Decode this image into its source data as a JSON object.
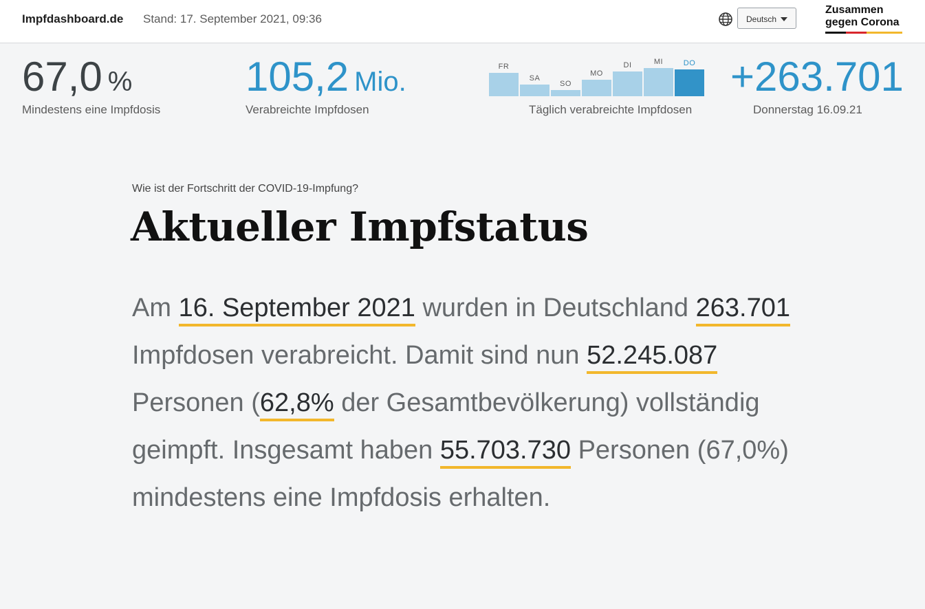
{
  "header": {
    "brand": "Impfdashboard.de",
    "stand": "Stand: 17. September 2021, 09:36",
    "language_selected": "Deutsch",
    "logo_line1": "Zusammen",
    "logo_line2": "gegen Corona",
    "globe_icon": "globe-icon",
    "colors": {
      "accent": "#2e93c9",
      "highlight": "#f2b72c"
    }
  },
  "kpis": {
    "first_dose": {
      "value": "67,0",
      "unit": "%",
      "label": "Mindestens eine Impfdosis"
    },
    "total_doses": {
      "value": "105,2",
      "unit": "Mio.",
      "label": "Verabreichte Impfdosen"
    },
    "daily_chart_label": "Täglich verabreichte Impfdosen",
    "daily": {
      "value": "+263.701",
      "label": "Donnerstag 16.09.21"
    }
  },
  "chart_data": {
    "type": "bar",
    "categories": [
      "FR",
      "SA",
      "SO",
      "MO",
      "DI",
      "MI",
      "DO"
    ],
    "values": [
      0.58,
      0.3,
      0.16,
      0.42,
      0.62,
      0.7,
      0.68
    ],
    "active_index": 6,
    "xlabel": "Täglich verabreichte Impfdosen",
    "colors": {
      "bar": "#a8d1e8",
      "active": "#3293c8"
    }
  },
  "main": {
    "question": "Wie ist der Fortschritt der COVID-19-Impfung?",
    "title": "Aktueller Impfstatus",
    "p": {
      "t1": "Am ",
      "date": "16. September 2021",
      "t2": " wurden in Deutschland ",
      "doses": "263.701",
      "t3": " Impfdosen verabreicht. Damit sind nun ",
      "full": "52.245.087",
      "t4": " Personen (",
      "full_pct": "62,8%",
      "t5": " der Gesamt­bevölkerung) vollständig geimpft. Insgesamt haben ",
      "first": "55.703.730",
      "t6": " Personen (67,0%) mindestens eine Impf­dosis erhalten."
    }
  }
}
